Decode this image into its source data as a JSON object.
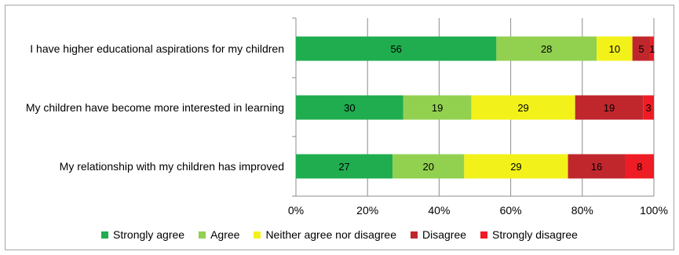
{
  "chart_data": {
    "type": "bar",
    "orientation": "horizontal",
    "stacked": true,
    "normalized": true,
    "categories": [
      "I have higher educational aspirations for my children",
      "My children have become more interested in learning",
      "My relationship with my children has improved"
    ],
    "series": [
      {
        "name": "Strongly agree",
        "color": "#1fad4f",
        "values": [
          56,
          30,
          27
        ]
      },
      {
        "name": "Agree",
        "color": "#92d050",
        "values": [
          28,
          19,
          20
        ]
      },
      {
        "name": "Neither agree nor disagree",
        "color": "#f2f21a",
        "values": [
          10,
          29,
          29
        ]
      },
      {
        "name": "Disagree",
        "color": "#c0272d",
        "values": [
          5,
          19,
          16
        ]
      },
      {
        "name": "Strongly disagree",
        "color": "#ee1c25",
        "values": [
          1,
          3,
          8
        ]
      }
    ],
    "xlim": [
      0,
      100
    ],
    "xticks": [
      "0%",
      "20%",
      "40%",
      "60%",
      "80%",
      "100%"
    ],
    "grid": true,
    "legend": "bottom"
  }
}
